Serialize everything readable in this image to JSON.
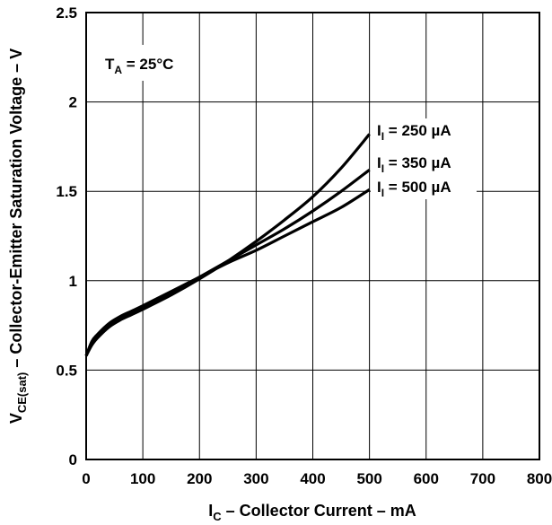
{
  "chart_data": {
    "type": "line",
    "xlabel": {
      "main": "I",
      "sub": "C",
      "rest": " – Collector Current – mA"
    },
    "ylabel": {
      "main": "V",
      "sub": "CE(sat)",
      "rest": " – Collector-Emitter Saturation Voltage – V"
    },
    "xlim": [
      0,
      800
    ],
    "ylim": [
      0,
      2.5
    ],
    "x_ticks": [
      "0",
      "100",
      "200",
      "300",
      "400",
      "500",
      "600",
      "700",
      "800"
    ],
    "y_ticks": [
      "0",
      "0.5",
      "1",
      "1.5",
      "2",
      "2.5"
    ],
    "grid": true,
    "annotation": {
      "main": "T",
      "sub": "A",
      "rest": " = 25°C"
    },
    "series": [
      {
        "name": "I_I = 250 µA",
        "label": {
          "main": "I",
          "sub": "I",
          "rest": " = 250 µA"
        },
        "x": [
          0,
          10,
          20,
          40,
          60,
          80,
          100,
          150,
          200,
          250,
          300,
          350,
          400,
          450,
          500
        ],
        "y": [
          0.58,
          0.64,
          0.68,
          0.74,
          0.78,
          0.81,
          0.84,
          0.92,
          1.01,
          1.11,
          1.22,
          1.34,
          1.47,
          1.63,
          1.82
        ]
      },
      {
        "name": "I_I = 350 µA",
        "label": {
          "main": "I",
          "sub": "I",
          "rest": " = 350 µA"
        },
        "x": [
          0,
          10,
          20,
          40,
          60,
          80,
          100,
          150,
          200,
          250,
          300,
          350,
          400,
          450,
          500
        ],
        "y": [
          0.58,
          0.65,
          0.69,
          0.75,
          0.79,
          0.82,
          0.85,
          0.93,
          1.02,
          1.11,
          1.2,
          1.29,
          1.39,
          1.5,
          1.62
        ]
      },
      {
        "name": "I_I = 500 µA",
        "label": {
          "main": "I",
          "sub": "I",
          "rest": " = 500 µA"
        },
        "x": [
          0,
          10,
          20,
          40,
          60,
          80,
          100,
          150,
          200,
          250,
          300,
          350,
          400,
          450,
          500
        ],
        "y": [
          0.58,
          0.66,
          0.7,
          0.76,
          0.8,
          0.83,
          0.86,
          0.94,
          1.02,
          1.1,
          1.17,
          1.25,
          1.33,
          1.41,
          1.51
        ]
      }
    ]
  }
}
